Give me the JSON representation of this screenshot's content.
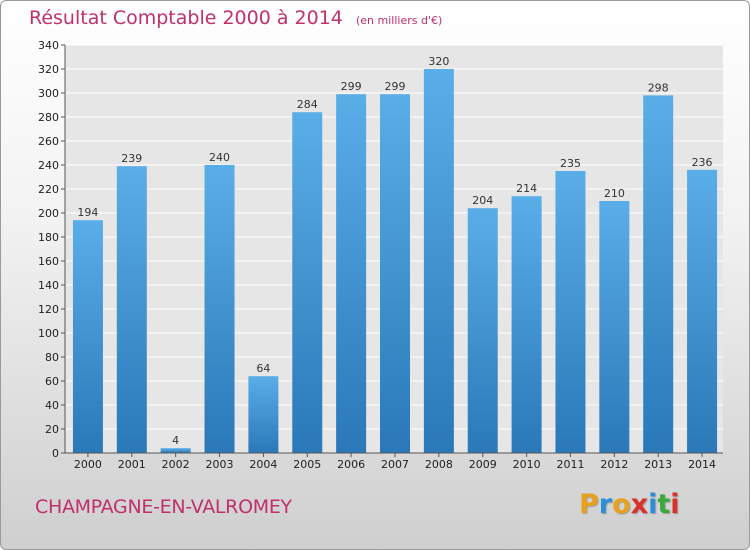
{
  "chart_data": {
    "type": "bar",
    "title": "Résultat Comptable 2000 à 2014",
    "subtitle": "(en milliers d'€)",
    "categories": [
      "2000",
      "2001",
      "2002",
      "2003",
      "2004",
      "2005",
      "2006",
      "2007",
      "2008",
      "2009",
      "2010",
      "2011",
      "2012",
      "2013",
      "2014"
    ],
    "values": [
      194,
      239,
      4,
      240,
      64,
      284,
      299,
      299,
      320,
      204,
      214,
      235,
      210,
      298,
      236
    ],
    "ylim": [
      0,
      340
    ],
    "yticks": [
      0,
      20,
      40,
      60,
      80,
      100,
      120,
      140,
      160,
      180,
      200,
      220,
      240,
      260,
      280,
      300,
      320,
      340
    ],
    "grid": true,
    "bar_color_top": "#5aaee8",
    "bar_color_bottom": "#2a78b8"
  },
  "footer": {
    "commune": "CHAMPAGNE-EN-VALROMEY",
    "brand": "Proxiti"
  },
  "colors": {
    "title": "#c0306a",
    "brand_letters": [
      "#e8a020",
      "#2a8fd8",
      "#e8a020",
      "#d8302a",
      "#2a8fd8",
      "#3aa83a",
      "#d8302a"
    ]
  }
}
